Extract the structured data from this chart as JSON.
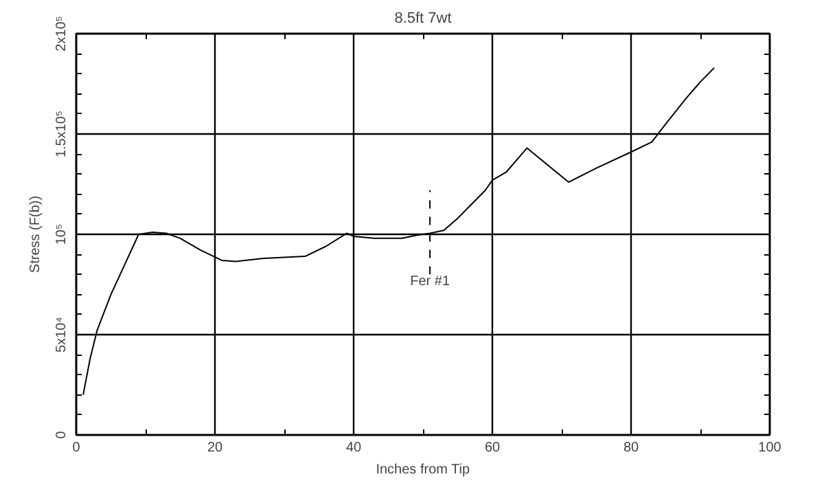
{
  "chart_data": {
    "type": "line",
    "title": "8.5ft 7wt",
    "xlabel": "Inches from Tip",
    "ylabel": "Stress (F(b))",
    "x": [
      1,
      2,
      3,
      5,
      7,
      9,
      11,
      13,
      15,
      18,
      21,
      23,
      27,
      33,
      36,
      39,
      40,
      43,
      47,
      49,
      51,
      53,
      55,
      57,
      59,
      60,
      62,
      65,
      71,
      75,
      80,
      83,
      85,
      88,
      90,
      92
    ],
    "series": [
      {
        "color": "#000000",
        "values": [
          20000,
          38000,
          52000,
          70000,
          85000,
          100000,
          101000,
          100500,
          98000,
          92000,
          87000,
          86500,
          88000,
          89000,
          94000,
          100500,
          99000,
          98000,
          98000,
          99500,
          100500,
          102000,
          108000,
          115000,
          122000,
          127000,
          131000,
          143000,
          126000,
          133000,
          141000,
          146000,
          155000,
          168000,
          176000,
          183000
        ]
      }
    ],
    "xlim": [
      0,
      100
    ],
    "ylim": [
      0,
      200000
    ],
    "xticks": [
      0,
      20,
      40,
      60,
      80,
      100
    ],
    "yticks": [
      0,
      {
        "value": 50000,
        "label": "5x10⁴"
      },
      {
        "value": 100000,
        "label": "10⁵"
      },
      {
        "value": 150000,
        "label": "1.5x10⁵"
      },
      {
        "value": 200000,
        "label": "2x10⁵"
      }
    ],
    "ref_lines": [
      {
        "axis": "x",
        "value": 51,
        "label": "Fer #1",
        "line_style": "dashed"
      }
    ],
    "grid": true,
    "line_style": "solid"
  }
}
